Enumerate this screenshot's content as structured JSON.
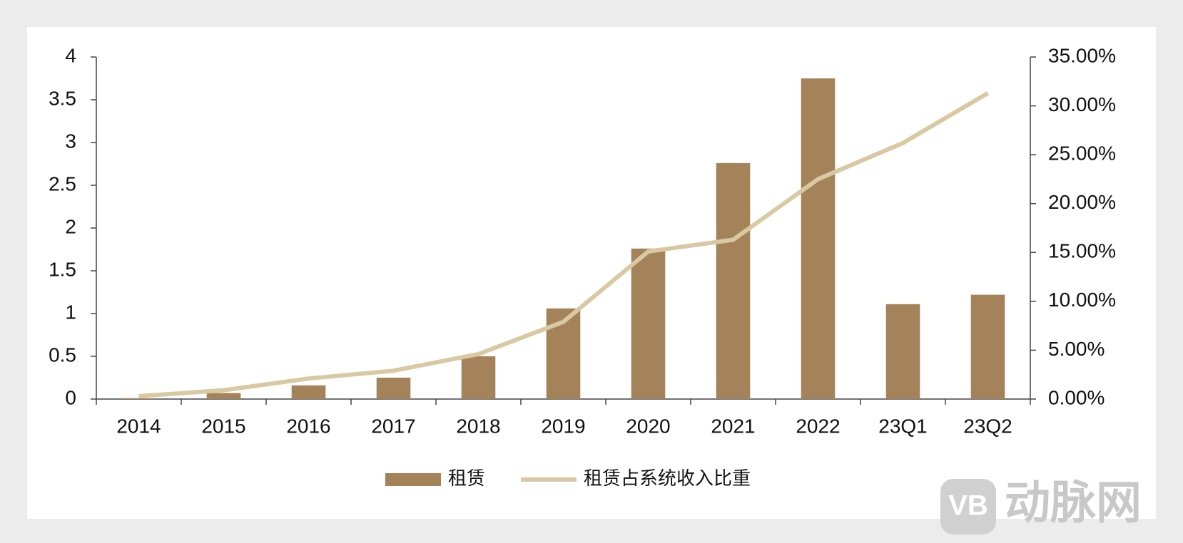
{
  "chart_data": {
    "type": "bar+line",
    "categories": [
      "2014",
      "2015",
      "2016",
      "2017",
      "2018",
      "2019",
      "2020",
      "2021",
      "2022",
      "23Q1",
      "23Q2"
    ],
    "series": [
      {
        "name": "租赁",
        "type": "bar",
        "color": "#a5835a",
        "values": [
          0.01,
          0.07,
          0.16,
          0.25,
          0.5,
          1.06,
          1.76,
          2.76,
          3.75,
          1.11,
          1.22
        ]
      },
      {
        "name": "租赁占系统收入比重",
        "type": "line",
        "axis": "y2",
        "color": "#d9c9a3",
        "values": [
          0.3,
          0.9,
          2.1,
          2.9,
          4.6,
          7.9,
          15.1,
          16.3,
          22.5,
          26.2,
          31.3
        ]
      }
    ],
    "ylim": [
      0,
      4
    ],
    "yticks": [
      0,
      0.5,
      1,
      1.5,
      2,
      2.5,
      3,
      3.5,
      4
    ],
    "y2lim": [
      0,
      35
    ],
    "y2ticks": [
      {
        "value": 0,
        "label": "0.00%"
      },
      {
        "value": 5,
        "label": "5.00%"
      },
      {
        "value": 10,
        "label": "10.00%"
      },
      {
        "value": 15,
        "label": "15.00%"
      },
      {
        "value": 20,
        "label": "20.00%"
      },
      {
        "value": 25,
        "label": "25.00%"
      },
      {
        "value": 30,
        "label": "30.00%"
      },
      {
        "value": 35,
        "label": "35.00%"
      }
    ],
    "legend": "bottom",
    "watermark": "动脉网"
  }
}
